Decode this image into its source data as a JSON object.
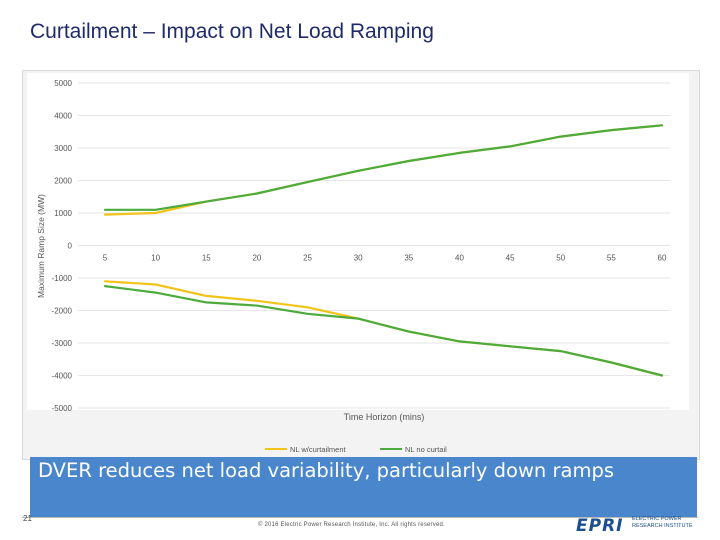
{
  "slide": {
    "title": "Curtailment – Impact on Net Load Ramping",
    "callout": "DVER reduces net load variability, particularly down ramps",
    "page_number": "21",
    "copyright": "© 2016 Electric Power Research Institute, Inc. All rights reserved.",
    "logo": {
      "mark": "EPRI",
      "tagline_line1": "ELECTRIC POWER",
      "tagline_line2": "RESEARCH INSTITUTE"
    }
  },
  "colors": {
    "with_curtailment": "#f2c318",
    "no_curtail": "#4cab3c",
    "callout_bg": "#4a86cc",
    "title": "#1f2a6b"
  },
  "chart_data": {
    "type": "line",
    "title": "",
    "xlabel": "Time Horizon (mins)",
    "ylabel": "Maximum Ramp Size (MW)",
    "x_ticks": [
      5,
      10,
      15,
      20,
      25,
      30,
      35,
      40,
      45,
      50,
      55,
      60
    ],
    "y_ticks": [
      5000,
      4000,
      3000,
      2000,
      1000,
      0,
      -1000,
      -2000,
      -3000,
      -4000,
      -5000
    ],
    "ylim": [
      -5000,
      5000
    ],
    "xlim": [
      5,
      60
    ],
    "grid": "horizontal",
    "legend_position": "bottom",
    "series": [
      {
        "name": "NL w/curtailment",
        "color": "#f2c318",
        "x": [
          5,
          10,
          15,
          20,
          25,
          30,
          35,
          40,
          45,
          50,
          55,
          60
        ],
        "values": [
          950,
          1000,
          1350,
          1600,
          1950,
          2300,
          2600,
          2850,
          3050,
          3350,
          3550,
          3700
        ]
      },
      {
        "name": "NL no curtail",
        "color": "#4cab3c",
        "x": [
          5,
          10,
          15,
          20,
          25,
          30,
          35,
          40,
          45,
          50,
          55,
          60
        ],
        "values": [
          1100,
          1100,
          1350,
          1600,
          1950,
          2300,
          2600,
          2850,
          3050,
          3350,
          3550,
          3700
        ]
      },
      {
        "name": "NL w/curtailment",
        "color": "#f2c318",
        "x": [
          5,
          10,
          15,
          20,
          25,
          30,
          35,
          40,
          45,
          50,
          55,
          60
        ],
        "values": [
          -1100,
          -1200,
          -1550,
          -1700,
          -1900,
          -2250,
          -2650,
          -2950,
          -3100,
          -3250,
          -3600,
          -4000
        ]
      },
      {
        "name": "NL no curtail",
        "color": "#4cab3c",
        "x": [
          5,
          10,
          15,
          20,
          25,
          30,
          35,
          40,
          45,
          50,
          55,
          60
        ],
        "values": [
          -1250,
          -1450,
          -1750,
          -1850,
          -2100,
          -2250,
          -2650,
          -2950,
          -3100,
          -3250,
          -3600,
          -4000
        ]
      }
    ],
    "legend": [
      {
        "label": "NL w/curtailment",
        "color": "#f2c318"
      },
      {
        "label": "NL no curtail",
        "color": "#4cab3c"
      }
    ]
  }
}
